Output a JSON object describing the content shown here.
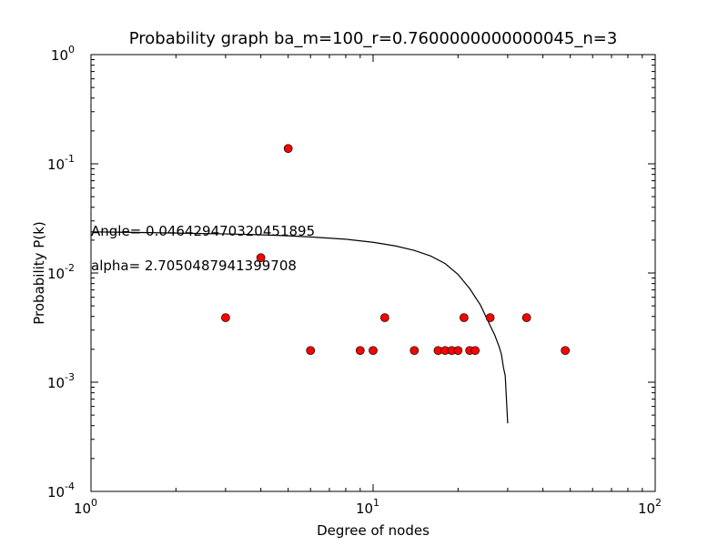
{
  "chart_data": {
    "type": "scatter",
    "title": "Probability graph ba_m=100_r=0.7600000000000045_n=3",
    "xlabel": "Degree of nodes",
    "ylabel": "Probability P(k)",
    "x_scale": "log",
    "y_scale": "log",
    "xlim": [
      1,
      100
    ],
    "ylim": [
      0.0001,
      1
    ],
    "x_ticks": [
      {
        "base": "10",
        "exp": "0",
        "value": 1
      },
      {
        "base": "10",
        "exp": "1",
        "value": 10
      },
      {
        "base": "10",
        "exp": "2",
        "value": 100
      }
    ],
    "y_ticks": [
      {
        "base": "10",
        "exp": "0",
        "value": 1
      },
      {
        "base": "10",
        "exp": "-1",
        "value": 0.1
      },
      {
        "base": "10",
        "exp": "-2",
        "value": 0.01
      },
      {
        "base": "10",
        "exp": "-3",
        "value": 0.001
      },
      {
        "base": "10",
        "exp": "-4",
        "value": 0.0001
      }
    ],
    "grid": false,
    "points": {
      "color": "#ff0000",
      "x": [
        3,
        4,
        5,
        6,
        9,
        10,
        11,
        14,
        17,
        18,
        19,
        20,
        21,
        22,
        23,
        26,
        35,
        48
      ],
      "y": [
        0.0039,
        0.0138,
        0.138,
        0.00195,
        0.00195,
        0.00195,
        0.0039,
        0.00195,
        0.00195,
        0.00195,
        0.00195,
        0.00195,
        0.0039,
        0.00195,
        0.00195,
        0.0039,
        0.0039,
        0.00195
      ]
    },
    "fit_line": {
      "color": "#000000",
      "x": [
        1,
        1.5,
        2,
        3,
        4,
        5,
        6,
        8,
        10,
        12,
        14,
        16,
        18,
        20,
        22,
        24,
        26,
        27,
        28,
        28.5,
        29,
        29.4,
        30
      ],
      "y": [
        0.0238,
        0.0235,
        0.0232,
        0.0228,
        0.0224,
        0.0219,
        0.0214,
        0.0204,
        0.0191,
        0.0177,
        0.0161,
        0.0143,
        0.0122,
        0.0097,
        0.0072,
        0.0051,
        0.0033,
        0.0027,
        0.0021,
        0.0018,
        0.00135,
        0.00115,
        0.00042
      ]
    },
    "annotations": [
      {
        "text": "Angle=  0.046429470320451895"
      },
      {
        "text": "alpha= 2.7050487941399708"
      }
    ]
  }
}
